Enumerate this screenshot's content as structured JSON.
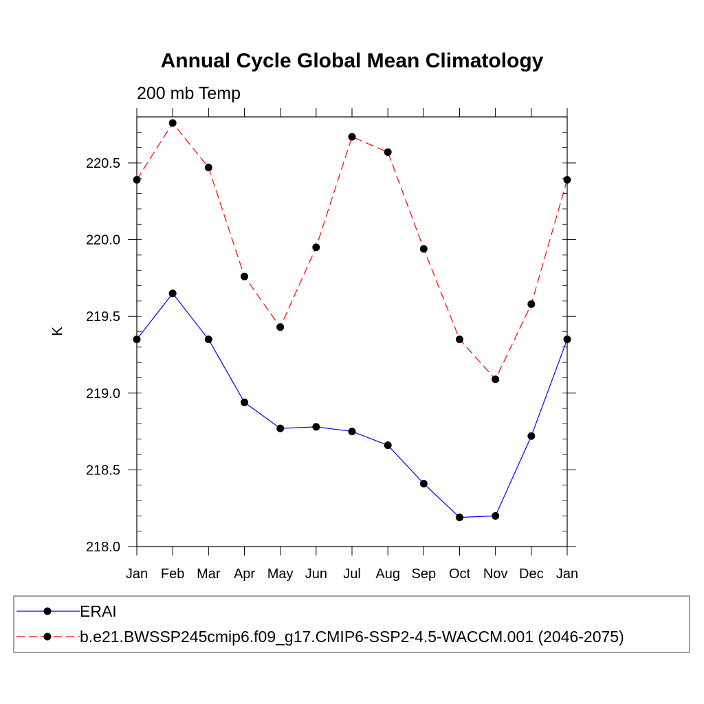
{
  "chart_data": {
    "type": "line",
    "title": "Annual Cycle Global Mean Climatology",
    "subtitle": "200 mb Temp",
    "xlabel": "",
    "ylabel": "K",
    "categories": [
      "Jan",
      "Feb",
      "Mar",
      "Apr",
      "May",
      "Jun",
      "Jul",
      "Aug",
      "Sep",
      "Oct",
      "Nov",
      "Dec",
      "Jan"
    ],
    "ylim": [
      218.0,
      220.8
    ],
    "yticks": [
      "218.0",
      "218.5",
      "219.0",
      "219.5",
      "220.0",
      "220.5"
    ],
    "grid": false,
    "legend_position": "bottom",
    "series": [
      {
        "name": "ERAI",
        "color": "#0000ff",
        "dash": "solid",
        "marker": "filled-circle",
        "values": [
          219.35,
          219.65,
          219.35,
          218.94,
          218.77,
          218.78,
          218.75,
          218.66,
          218.41,
          218.19,
          218.2,
          218.72,
          219.35
        ]
      },
      {
        "name": "b.e21.BWSSP245cmip6.f09_g17.CMIP6-SSP2-4.5-WACCM.001 (2046-2075)",
        "color": "#ff0000",
        "dash": "dashed",
        "marker": "filled-circle",
        "values": [
          220.39,
          220.76,
          220.47,
          219.76,
          219.43,
          219.95,
          220.67,
          220.57,
          219.94,
          219.35,
          219.09,
          219.58,
          220.39
        ]
      }
    ]
  }
}
